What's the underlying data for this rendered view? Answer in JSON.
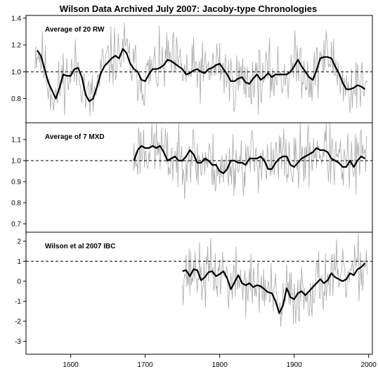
{
  "title": "Wilson Data Archived July 2007: Jacoby-type Chronologies",
  "chart_data": [
    {
      "type": "line",
      "label": "Average of 20 RW",
      "xlim": [
        1540,
        2005
      ],
      "ylim": [
        0.62,
        1.42
      ],
      "yticks": [
        0.8,
        1.0,
        1.2,
        1.4
      ],
      "ytick_labels": [
        "0.8",
        "1.0",
        "1.2",
        "1.4"
      ],
      "reference_line": 1.0,
      "smooth": {
        "x": [
          1555,
          1560,
          1565,
          1570,
          1575,
          1580,
          1585,
          1590,
          1595,
          1600,
          1605,
          1610,
          1615,
          1620,
          1625,
          1630,
          1635,
          1640,
          1645,
          1650,
          1655,
          1660,
          1665,
          1670,
          1675,
          1680,
          1685,
          1690,
          1695,
          1700,
          1705,
          1710,
          1715,
          1720,
          1725,
          1730,
          1735,
          1740,
          1745,
          1750,
          1755,
          1760,
          1765,
          1770,
          1775,
          1780,
          1785,
          1790,
          1795,
          1800,
          1805,
          1810,
          1815,
          1820,
          1825,
          1830,
          1835,
          1840,
          1845,
          1850,
          1855,
          1860,
          1865,
          1870,
          1875,
          1880,
          1885,
          1890,
          1895,
          1900,
          1905,
          1910,
          1915,
          1920,
          1925,
          1930,
          1935,
          1940,
          1945,
          1950,
          1955,
          1960,
          1965,
          1970,
          1975,
          1980,
          1985,
          1990,
          1995
        ],
        "y": [
          1.16,
          1.12,
          1.02,
          0.92,
          0.86,
          0.8,
          0.88,
          0.98,
          0.97,
          0.97,
          1.02,
          1.03,
          0.96,
          0.83,
          0.78,
          0.8,
          0.88,
          0.98,
          1.04,
          1.07,
          1.1,
          1.12,
          1.1,
          1.17,
          1.14,
          1.06,
          1.02,
          1.0,
          0.94,
          0.93,
          0.98,
          1.02,
          1.02,
          1.03,
          1.05,
          1.09,
          1.08,
          1.06,
          1.04,
          1.02,
          0.98,
          0.99,
          1.01,
          1.02,
          1.0,
          0.99,
          1.02,
          1.03,
          1.05,
          1.06,
          1.02,
          0.98,
          0.93,
          0.93,
          0.95,
          0.96,
          0.92,
          0.91,
          0.95,
          0.98,
          0.94,
          0.96,
          0.99,
          0.96,
          0.98,
          0.98,
          0.98,
          0.98,
          1.0,
          1.04,
          1.09,
          1.04,
          1.0,
          0.96,
          0.94,
          1.01,
          1.1,
          1.11,
          1.11,
          1.1,
          1.04,
          0.99,
          0.92,
          0.87,
          0.87,
          0.88,
          0.9,
          0.89,
          0.87
        ]
      },
      "raw_seed": 11,
      "raw_spread": 0.11,
      "raw_x": [
        1552,
        1998
      ]
    },
    {
      "type": "line",
      "label": "Average of 7 MXD",
      "xlim": [
        1540,
        2005
      ],
      "ylim": [
        0.66,
        1.18
      ],
      "yticks": [
        0.7,
        0.8,
        0.9,
        1.0,
        1.1
      ],
      "ytick_labels": [
        "0.7",
        "0.8",
        "0.9",
        "1.0",
        "1.1"
      ],
      "reference_line": 1.0,
      "smooth": {
        "x": [
          1685,
          1690,
          1695,
          1700,
          1705,
          1710,
          1715,
          1720,
          1725,
          1730,
          1735,
          1740,
          1745,
          1750,
          1755,
          1760,
          1765,
          1770,
          1775,
          1780,
          1785,
          1790,
          1795,
          1800,
          1805,
          1810,
          1815,
          1820,
          1825,
          1830,
          1835,
          1840,
          1845,
          1850,
          1855,
          1860,
          1865,
          1870,
          1875,
          1880,
          1885,
          1890,
          1895,
          1900,
          1905,
          1910,
          1915,
          1920,
          1925,
          1930,
          1935,
          1940,
          1945,
          1950,
          1955,
          1960,
          1965,
          1970,
          1975,
          1980,
          1985,
          1990,
          1995
        ],
        "y": [
          1.0,
          1.05,
          1.07,
          1.06,
          1.06,
          1.07,
          1.06,
          1.07,
          1.04,
          1.0,
          1.01,
          1.02,
          1.0,
          1.0,
          1.02,
          1.05,
          1.03,
          0.99,
          0.99,
          1.01,
          1.0,
          0.98,
          0.98,
          0.95,
          0.94,
          0.96,
          1.0,
          1.0,
          0.99,
          0.99,
          0.98,
          1.01,
          1.01,
          1.01,
          1.02,
          1.0,
          0.96,
          0.96,
          0.99,
          1.01,
          1.02,
          1.02,
          0.98,
          0.97,
          0.99,
          1.01,
          1.02,
          1.03,
          1.04,
          1.06,
          1.05,
          1.05,
          1.04,
          1.01,
          1.0,
          0.99,
          0.97,
          0.97,
          1.0,
          0.97,
          1.0,
          1.02,
          1.01
        ]
      },
      "raw_seed": 23,
      "raw_spread": 0.075,
      "raw_x": [
        1684,
        1998
      ]
    },
    {
      "type": "line",
      "label": "Wilson et al 2007 IBC",
      "xlim": [
        1540,
        2005
      ],
      "ylim": [
        -3.65,
        2.45
      ],
      "yticks": [
        -3,
        -2,
        -1,
        0,
        1,
        2
      ],
      "ytick_labels": [
        "-3",
        "-2",
        "-1",
        "0",
        "1",
        "2"
      ],
      "reference_line": 1.0,
      "smooth": {
        "x": [
          1750,
          1755,
          1760,
          1765,
          1770,
          1775,
          1780,
          1785,
          1790,
          1795,
          1800,
          1805,
          1810,
          1815,
          1820,
          1825,
          1830,
          1835,
          1840,
          1845,
          1850,
          1855,
          1860,
          1865,
          1870,
          1875,
          1880,
          1885,
          1890,
          1895,
          1900,
          1905,
          1910,
          1915,
          1920,
          1925,
          1930,
          1935,
          1940,
          1945,
          1950,
          1955,
          1960,
          1965,
          1970,
          1975,
          1980,
          1985,
          1990,
          1995
        ],
        "y": [
          0.5,
          0.55,
          0.25,
          0.6,
          0.55,
          0.05,
          0.2,
          0.45,
          0.5,
          0.25,
          0.35,
          0.5,
          0.15,
          -0.4,
          -0.05,
          0.3,
          -0.1,
          -0.2,
          -0.1,
          -0.3,
          -0.2,
          -0.25,
          -0.4,
          -0.55,
          -0.6,
          -1.0,
          -1.6,
          -1.2,
          -0.35,
          -0.8,
          -0.9,
          -0.6,
          -0.5,
          -0.7,
          -0.5,
          -0.3,
          -0.1,
          0.1,
          -0.1,
          0.05,
          0.4,
          0.2,
          0.1,
          0.0,
          0.1,
          0.4,
          0.3,
          0.6,
          0.7,
          0.9
        ]
      },
      "raw_seed": 37,
      "raw_spread": 0.75,
      "raw_x": [
        1750,
        1998
      ]
    }
  ],
  "xaxis": {
    "ticks": [
      1600,
      1700,
      1800,
      1900,
      2000
    ],
    "tick_labels": [
      "1600",
      "1700",
      "1800",
      "1900",
      "2000"
    ]
  },
  "colors": {
    "smooth": "#000000",
    "raw": "#a8a8a8",
    "frame": "#000000"
  }
}
